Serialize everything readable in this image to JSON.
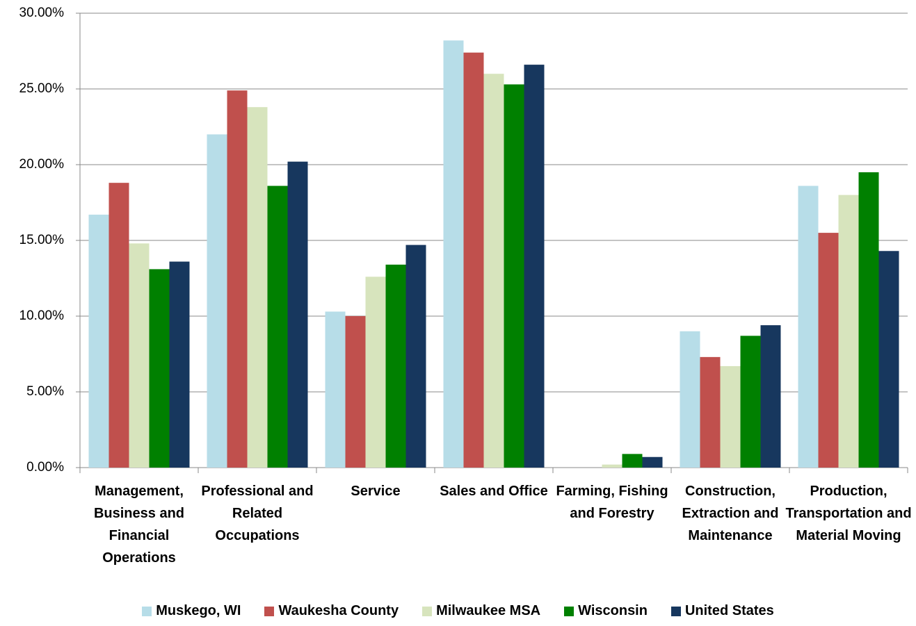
{
  "chart_data": {
    "type": "bar",
    "categories": [
      "Management, Business and Financial Operations",
      "Professional and Related Occupations",
      "Service",
      "Sales and Office",
      "Farming, Fishing and Forestry",
      "Construction, Extraction and Maintenance",
      "Production, Transportation and Material Moving"
    ],
    "series": [
      {
        "name": "Muskego, WI",
        "color": "#b7dde8",
        "values": [
          16.7,
          22.0,
          10.3,
          28.2,
          0,
          9.0,
          18.6
        ]
      },
      {
        "name": "Waukesha County",
        "color": "#c0504d",
        "values": [
          18.8,
          24.9,
          10.0,
          27.4,
          0,
          7.3,
          15.5
        ]
      },
      {
        "name": "Milwaukee MSA",
        "color": "#d7e4bd",
        "values": [
          14.8,
          23.8,
          12.6,
          26.0,
          0.2,
          6.7,
          18.0
        ]
      },
      {
        "name": "Wisconsin",
        "color": "#008000",
        "values": [
          13.1,
          18.6,
          13.4,
          25.3,
          0.9,
          8.7,
          19.5
        ]
      },
      {
        "name": "United States",
        "color": "#17375e",
        "values": [
          13.6,
          20.2,
          14.7,
          26.6,
          0.7,
          9.4,
          14.3
        ]
      }
    ],
    "ylim": [
      0,
      30
    ],
    "yticks": [
      {
        "value": 0,
        "label": "0.00%"
      },
      {
        "value": 5,
        "label": "5.00%"
      },
      {
        "value": 10,
        "label": "10.00%"
      },
      {
        "value": 15,
        "label": "15.00%"
      },
      {
        "value": 20,
        "label": "20.00%"
      },
      {
        "value": 25,
        "label": "25.00%"
      },
      {
        "value": 30,
        "label": "30.00%"
      }
    ],
    "grid": true,
    "legend": "bottom"
  }
}
